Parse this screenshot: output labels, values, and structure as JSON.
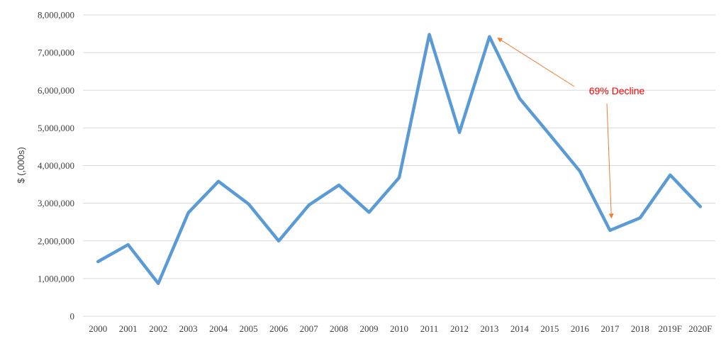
{
  "chart_data": {
    "type": "line",
    "title": "",
    "xlabel": "",
    "ylabel": "$ (,000s)",
    "categories": [
      "2000",
      "2001",
      "2002",
      "2003",
      "2004",
      "2005",
      "2006",
      "2007",
      "2008",
      "2009",
      "2010",
      "2011",
      "2012",
      "2013",
      "2014",
      "2015",
      "2016",
      "2017",
      "2018",
      "2019F",
      "2020F"
    ],
    "series": [
      {
        "values": [
          1450000,
          1900000,
          870000,
          2750000,
          3580000,
          2980000,
          2000000,
          2950000,
          3480000,
          2760000,
          3680000,
          7480000,
          4880000,
          7420000,
          5780000,
          4820000,
          3850000,
          2280000,
          2610000,
          3750000,
          2910000
        ]
      }
    ],
    "ylim": [
      0,
      8000000
    ],
    "yticks": [
      0,
      1000000,
      2000000,
      3000000,
      4000000,
      5000000,
      6000000,
      7000000,
      8000000
    ],
    "ytick_labels": [
      "0",
      "1,000,000",
      "2,000,000",
      "3,000,000",
      "4,000,000",
      "5,000,000",
      "6,000,000",
      "7,000,000",
      "8,000,000"
    ],
    "grid": true,
    "legend": "none",
    "annotation": {
      "text": "69% Decline",
      "from_category": "2013",
      "to_category": "2017"
    },
    "colors": {
      "line": "#5b9bd5",
      "grid": "#d9d9d9",
      "annotation_text": "#ff0000",
      "annotation_arrow": "#ed7d31",
      "tick_text": "#404040"
    }
  }
}
